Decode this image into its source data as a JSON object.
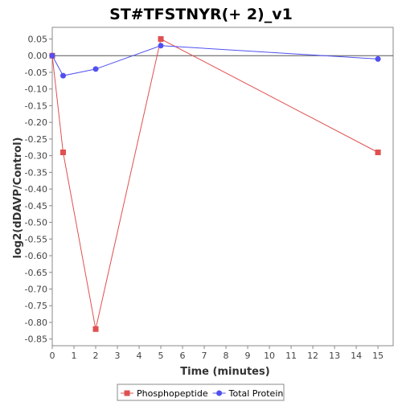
{
  "chart_data": {
    "type": "line",
    "title": "ST#TFSTNYR(+ 2)_v1",
    "xlabel": "Time (minutes)",
    "ylabel": "log2(dDAVP/Control)",
    "xlim": [
      0,
      15.7
    ],
    "ylim": [
      -0.87,
      0.085
    ],
    "xticks": [
      0,
      1,
      2,
      3,
      4,
      5,
      6,
      7,
      8,
      9,
      10,
      11,
      12,
      13,
      14,
      15
    ],
    "yticks": [
      0.05,
      0.0,
      -0.05,
      -0.1,
      -0.15,
      -0.2,
      -0.25,
      -0.3,
      -0.35,
      -0.4,
      -0.45,
      -0.5,
      -0.55,
      -0.6,
      -0.65,
      -0.7,
      -0.75,
      -0.8,
      -0.85
    ],
    "ytick_labels": [
      "0.05",
      "0.00",
      "-0.05",
      "-0.10",
      "-0.15",
      "-0.20",
      "-0.25",
      "-0.30",
      "-0.35",
      "-0.40",
      "-0.45",
      "-0.50",
      "-0.55",
      "-0.60",
      "-0.65",
      "-0.70",
      "-0.75",
      "-0.80",
      "-0.85"
    ],
    "zero_line": true,
    "grid": false,
    "legend_position": "bottom",
    "series": [
      {
        "name": "Phosphopeptide",
        "color": "#e05050",
        "marker": "square",
        "x": [
          0,
          0.5,
          2,
          5,
          15
        ],
        "y": [
          0.0,
          -0.29,
          -0.82,
          0.05,
          -0.29
        ]
      },
      {
        "name": "Total Protein",
        "color": "#5050f0",
        "marker": "circle",
        "x": [
          0,
          0.5,
          2,
          5,
          15
        ],
        "y": [
          0.0,
          -0.06,
          -0.04,
          0.03,
          -0.01
        ]
      }
    ]
  }
}
